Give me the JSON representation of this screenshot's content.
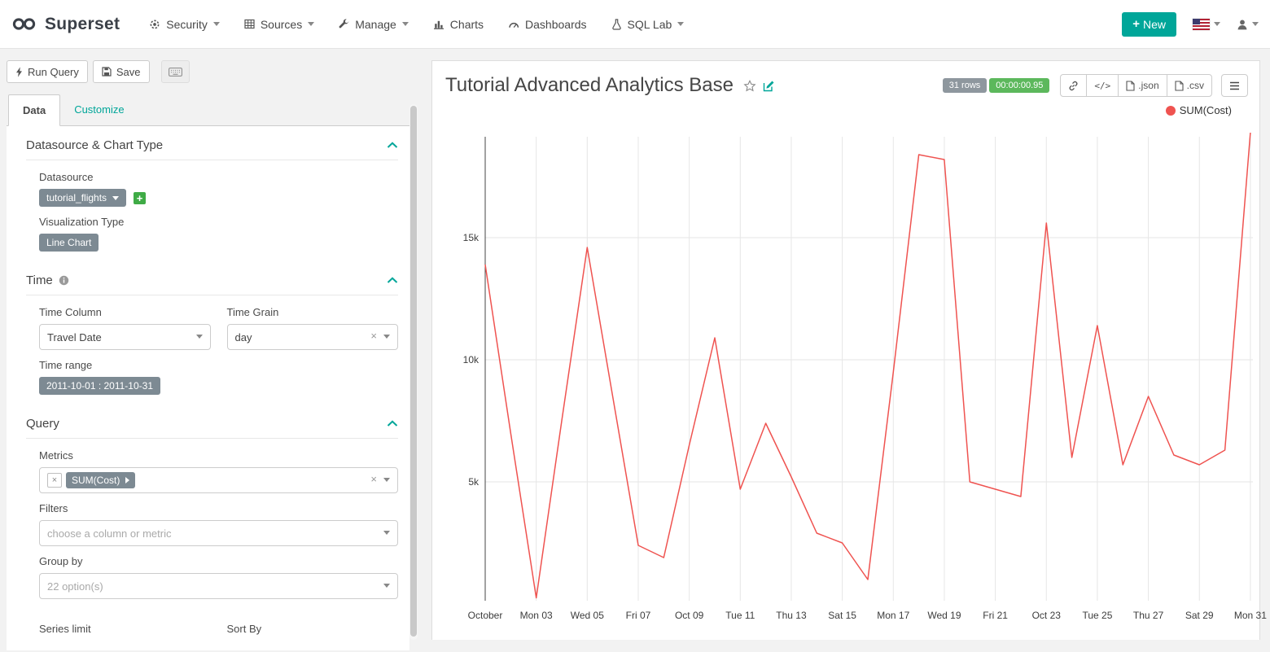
{
  "colors": {
    "accent_teal": "#00a699",
    "line_red": "#ef5350",
    "badge_gray": "#7d8a93",
    "success_green": "#5cb85c",
    "plus_green": "#3fab46"
  },
  "icons": {
    "plus": "+",
    "close": "×"
  },
  "navbar": {
    "brand": "Superset",
    "items": [
      {
        "label": "Security"
      },
      {
        "label": "Sources"
      },
      {
        "label": "Manage"
      },
      {
        "label": "Charts"
      },
      {
        "label": "Dashboards"
      },
      {
        "label": "SQL Lab"
      }
    ],
    "new_button_label": "New"
  },
  "toolbar": {
    "run_query_label": "Run Query",
    "save_label": "Save"
  },
  "tabs": {
    "data": "Data",
    "customize": "Customize"
  },
  "controls": {
    "datasource_section_title": "Datasource & Chart Type",
    "datasource_label": "Datasource",
    "datasource_value": "tutorial_flights",
    "viz_type_label": "Visualization Type",
    "viz_type_value": "Line Chart",
    "time_section_title": "Time",
    "time_column_label": "Time Column",
    "time_column_value": "Travel Date",
    "time_grain_label": "Time Grain",
    "time_grain_value": "day",
    "time_range_label": "Time range",
    "time_range_value": "2011-10-01 : 2011-10-31",
    "query_section_title": "Query",
    "metrics_label": "Metrics",
    "metric_token": "SUM(Cost)",
    "filters_label": "Filters",
    "filters_placeholder": "choose a column or metric",
    "groupby_label": "Group by",
    "groupby_placeholder": "22 option(s)",
    "series_limit_label": "Series limit",
    "sort_by_label": "Sort By"
  },
  "chart_header": {
    "title": "Tutorial Advanced Analytics Base",
    "rows_badge": "31 rows",
    "duration_badge": "00:00:00.95",
    "code_button": "</>",
    "json_button": ".json",
    "csv_button": ".csv"
  },
  "chart_data": {
    "type": "line",
    "title": "Tutorial Advanced Analytics Base",
    "legend": [
      {
        "label": "SUM(Cost)",
        "color": "#ef5350"
      }
    ],
    "legend_position": "top-right",
    "grid": true,
    "x_axis": "Travel Date by day, 2011-10-01 to 2011-10-31",
    "x_tick_labels": [
      "October",
      "Mon 03",
      "Wed 05",
      "Fri 07",
      "Oct 09",
      "Tue 11",
      "Thu 13",
      "Sat 15",
      "Mon 17",
      "Wed 19",
      "Fri 21",
      "Oct 23",
      "Tue 25",
      "Thu 27",
      "Sat 29",
      "Mon 31"
    ],
    "tick_every_days": 2,
    "y_ticks": [
      {
        "label": "5k",
        "value": 5000
      },
      {
        "label": "10k",
        "value": 10000
      },
      {
        "label": "15k",
        "value": 15000
      }
    ],
    "ylim": [
      0,
      19500
    ],
    "series": [
      {
        "name": "SUM(Cost)",
        "color": "#ef5350",
        "values": [
          13900,
          7000,
          250,
          7500,
          14600,
          8500,
          2400,
          1900,
          6500,
          10900,
          4700,
          7400,
          5200,
          2900,
          2500,
          1000,
          9500,
          18400,
          18200,
          5000,
          4700,
          4400,
          15600,
          6000,
          11400,
          5700,
          8500,
          6100,
          5700,
          6300,
          19300
        ]
      }
    ]
  }
}
